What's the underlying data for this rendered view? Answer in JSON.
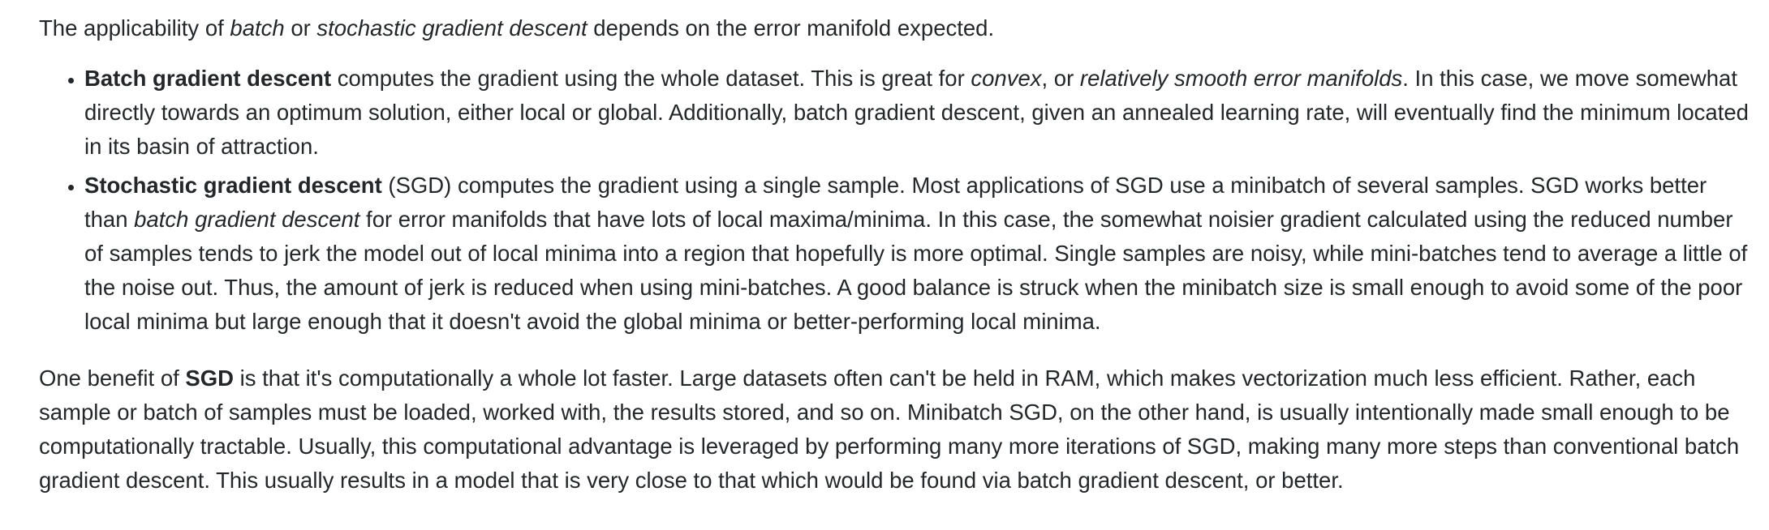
{
  "intro": {
    "t1": "The applicability of ",
    "i1": "batch",
    "t2": " or ",
    "i2": "stochastic gradient descent",
    "t3": " depends on the error manifold expected."
  },
  "bullets": [
    {
      "b1": "Batch gradient descent",
      "t1": " computes the gradient using the whole dataset. This is great for ",
      "i1": "convex",
      "t2": ", or ",
      "i2": "relatively smooth error manifolds",
      "t3": ". In this case, we move somewhat directly towards an optimum solution, either local or global. Additionally, batch gradient descent, given an annealed learning rate, will eventually find the minimum located in its basin of attraction."
    },
    {
      "b1": "Stochastic gradient descent",
      "t1": " (SGD) computes the gradient using a single sample. Most applications of SGD use a minibatch of several samples. SGD works better than ",
      "i1": "batch gradient descent",
      "t2": " for error manifolds that have lots of local maxima/minima. In this case, the somewhat noisier gradient calculated using the reduced number of samples tends to jerk the model out of local minima into a region that hopefully is more optimal. Single samples are noisy, while mini-batches tend to average a little of the noise out. Thus, the amount of jerk is reduced when using mini-batches. A good balance is struck when the minibatch size is small enough to avoid some of the poor local minima but large enough that it doesn't avoid the global minima or better-performing local minima."
    }
  ],
  "closing": {
    "t1": "One benefit of ",
    "b1": "SGD",
    "t2": " is that it's computationally a whole lot faster. Large datasets often can't be held in RAM, which makes vectorization much less efficient. Rather, each sample or batch of samples must be loaded, worked with, the results stored, and so on. Minibatch SGD, on the other hand, is usually intentionally made small enough to be computationally tractable. Usually, this computational advantage is leveraged by performing many more iterations of SGD, making many more steps than conventional batch gradient descent. This usually results in a model that is very close to that which would be found via batch gradient descent, or better."
  }
}
